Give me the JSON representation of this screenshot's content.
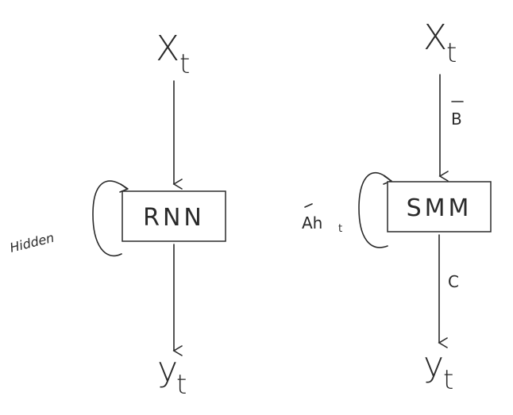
{
  "left": {
    "input_symbol": "X",
    "input_subscript": "t",
    "box_label": "RNN",
    "loop_label": "Hidden",
    "output_symbol": "y",
    "output_subscript": "t"
  },
  "right": {
    "input_symbol": "X",
    "input_subscript": "t",
    "input_arrow_label": "B",
    "box_label": "SMM",
    "loop_label_main": "Ah",
    "loop_label_sub": "t",
    "output_arrow_label": "C",
    "output_symbol": "y",
    "output_subscript": "t"
  }
}
